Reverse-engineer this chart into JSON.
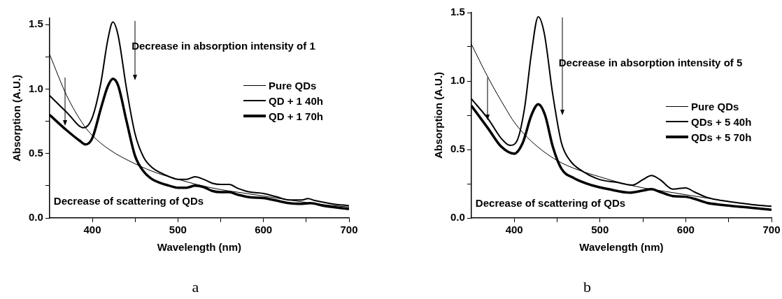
{
  "chart_data": [
    {
      "type": "line",
      "title": "a",
      "xlabel": "Wavelength (nm)",
      "ylabel": "Absorption (A.U.)",
      "xlim": [
        350,
        700
      ],
      "ylim": [
        0,
        1.55
      ],
      "xticks": [
        400,
        {
          "value": 450,
          "label": null
        },
        500,
        {
          "value": 550,
          "label": null
        },
        600,
        {
          "value": 650,
          "label": null
        },
        700
      ],
      "yticks": [
        {
          "value": 0,
          "label": "0.0"
        },
        {
          "value": 0.25,
          "label": null
        },
        {
          "value": 0.5,
          "label": "0.5"
        },
        {
          "value": 0.75,
          "label": null
        },
        {
          "value": 1,
          "label": "1.0"
        },
        {
          "value": 1.25,
          "label": null
        },
        {
          "value": 1.5,
          "label": "1.5"
        }
      ],
      "grid": false,
      "legend": "right",
      "marker": "none",
      "line_style": "solid",
      "annotations": [
        "Decrease in absorption intensity of 1",
        "Decrease of scattering of QDs"
      ],
      "series": [
        {
          "name": "Pure QDs",
          "color": "#000000",
          "x": [
            350,
            370,
            390,
            400,
            420,
            450,
            475,
            500,
            525,
            550,
            575,
            600,
            625,
            650,
            675,
            700
          ],
          "values": [
            1.27,
            0.95,
            0.72,
            0.64,
            0.53,
            0.42,
            0.35,
            0.3,
            0.255,
            0.22,
            0.195,
            0.17,
            0.145,
            0.12,
            0.1,
            0.085
          ]
        },
        {
          "name": "QD + 1 40h",
          "color": "#000000",
          "x": [
            350,
            370,
            390,
            400,
            410,
            418,
            424,
            430,
            440,
            450,
            460,
            470,
            480,
            490,
            500,
            510,
            520,
            530,
            540,
            550,
            560,
            570,
            585,
            600,
            615,
            630,
            645,
            652,
            660,
            680,
            700
          ],
          "values": [
            0.95,
            0.82,
            0.7,
            0.78,
            1.05,
            1.38,
            1.52,
            1.42,
            1.0,
            0.65,
            0.47,
            0.39,
            0.35,
            0.32,
            0.3,
            0.3,
            0.32,
            0.3,
            0.27,
            0.26,
            0.26,
            0.23,
            0.2,
            0.19,
            0.165,
            0.14,
            0.14,
            0.15,
            0.135,
            0.11,
            0.095
          ]
        },
        {
          "name": "QD + 1 70h",
          "color": "#000000",
          "x": [
            350,
            370,
            385,
            392,
            400,
            410,
            418,
            424,
            430,
            440,
            450,
            460,
            470,
            480,
            490,
            500,
            510,
            520,
            530,
            540,
            550,
            560,
            570,
            585,
            600,
            615,
            630,
            645,
            655,
            670,
            700
          ],
          "values": [
            0.8,
            0.68,
            0.6,
            0.57,
            0.62,
            0.85,
            1.02,
            1.08,
            1.03,
            0.75,
            0.48,
            0.36,
            0.3,
            0.27,
            0.25,
            0.235,
            0.235,
            0.25,
            0.24,
            0.21,
            0.2,
            0.2,
            0.18,
            0.16,
            0.155,
            0.135,
            0.115,
            0.11,
            0.115,
            0.095,
            0.07
          ]
        }
      ]
    },
    {
      "type": "line",
      "title": "b",
      "xlabel": "Wavelength (nm)",
      "ylabel": "Absorption (A.U.)",
      "xlim": [
        350,
        700
      ],
      "ylim": [
        0,
        1.5
      ],
      "xticks": [
        400,
        {
          "value": 450,
          "label": null
        },
        500,
        {
          "value": 550,
          "label": null
        },
        600,
        {
          "value": 650,
          "label": null
        },
        700
      ],
      "yticks": [
        {
          "value": 0,
          "label": "0.0"
        },
        {
          "value": 0.25,
          "label": null
        },
        {
          "value": 0.5,
          "label": "0.5"
        },
        {
          "value": 0.75,
          "label": null
        },
        {
          "value": 1,
          "label": "1.0"
        },
        {
          "value": 1.25,
          "label": null
        },
        {
          "value": 1.5,
          "label": "1.5"
        }
      ],
      "grid": false,
      "legend": "right",
      "marker": "none",
      "line_style": "solid",
      "annotations": [
        "Decrease in absorption intensity of 5",
        "Decrease of scattering of QDs"
      ],
      "series": [
        {
          "name": "Pure QDs",
          "color": "#000000",
          "x": [
            350,
            370,
            390,
            400,
            420,
            450,
            475,
            500,
            525,
            550,
            575,
            600,
            625,
            650,
            675,
            700
          ],
          "values": [
            1.27,
            1.02,
            0.8,
            0.7,
            0.56,
            0.42,
            0.35,
            0.3,
            0.255,
            0.22,
            0.195,
            0.17,
            0.145,
            0.12,
            0.1,
            0.085
          ]
        },
        {
          "name": "QDs + 5 40h",
          "color": "#000000",
          "x": [
            350,
            370,
            385,
            395,
            403,
            412,
            420,
            428,
            435,
            445,
            455,
            465,
            480,
            500,
            520,
            538,
            550,
            560,
            570,
            585,
            600,
            610,
            625,
            650,
            675,
            700
          ],
          "values": [
            0.87,
            0.72,
            0.58,
            0.53,
            0.56,
            0.8,
            1.2,
            1.47,
            1.35,
            0.9,
            0.55,
            0.42,
            0.34,
            0.28,
            0.26,
            0.24,
            0.28,
            0.31,
            0.28,
            0.21,
            0.22,
            0.19,
            0.15,
            0.12,
            0.1,
            0.085
          ]
        },
        {
          "name": "QDs + 5 70h",
          "color": "#000000",
          "x": [
            350,
            370,
            385,
            400,
            410,
            420,
            428,
            436,
            445,
            455,
            470,
            490,
            510,
            535,
            550,
            560,
            570,
            585,
            600,
            610,
            625,
            650,
            675,
            700
          ],
          "values": [
            0.82,
            0.65,
            0.52,
            0.47,
            0.55,
            0.75,
            0.83,
            0.75,
            0.52,
            0.36,
            0.29,
            0.24,
            0.21,
            0.185,
            0.2,
            0.21,
            0.19,
            0.16,
            0.155,
            0.14,
            0.11,
            0.09,
            0.075,
            0.06
          ]
        }
      ]
    }
  ]
}
